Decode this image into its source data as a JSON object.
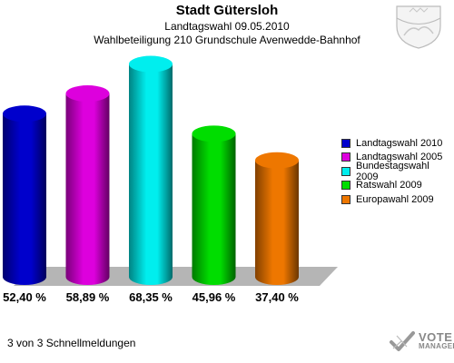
{
  "header": {
    "title": "Stadt Gütersloh",
    "subtitle": "Landtagswahl 09.05.2010",
    "subtitle2": "Wahlbeteiligung 210 Grundschule Avenwedde-Bahnhof"
  },
  "chart_data": {
    "type": "bar",
    "categories": [
      "Landtagswahl 2010",
      "Landtagswahl 2005",
      "Bundestagswahl 2009",
      "Ratswahl 2009",
      "Europawahl 2009"
    ],
    "values": [
      52.4,
      58.89,
      68.35,
      45.96,
      37.4
    ],
    "value_labels": [
      "52,40 %",
      "58,89 %",
      "68,35 %",
      "45,96 %",
      "37,40 %"
    ],
    "colors": [
      "#0000cc",
      "#dd00dd",
      "#00eeee",
      "#00dd00",
      "#ee7700"
    ],
    "legend_position": "right",
    "grid": false
  },
  "footer": {
    "text": "3 von 3 Schnellmeldungen"
  },
  "logo": {
    "line1": "VOTE",
    "line2": "MANAGER"
  },
  "icons": {
    "crest": "coat-of-arms-icon",
    "logo_mark": "checkmark-icon"
  }
}
